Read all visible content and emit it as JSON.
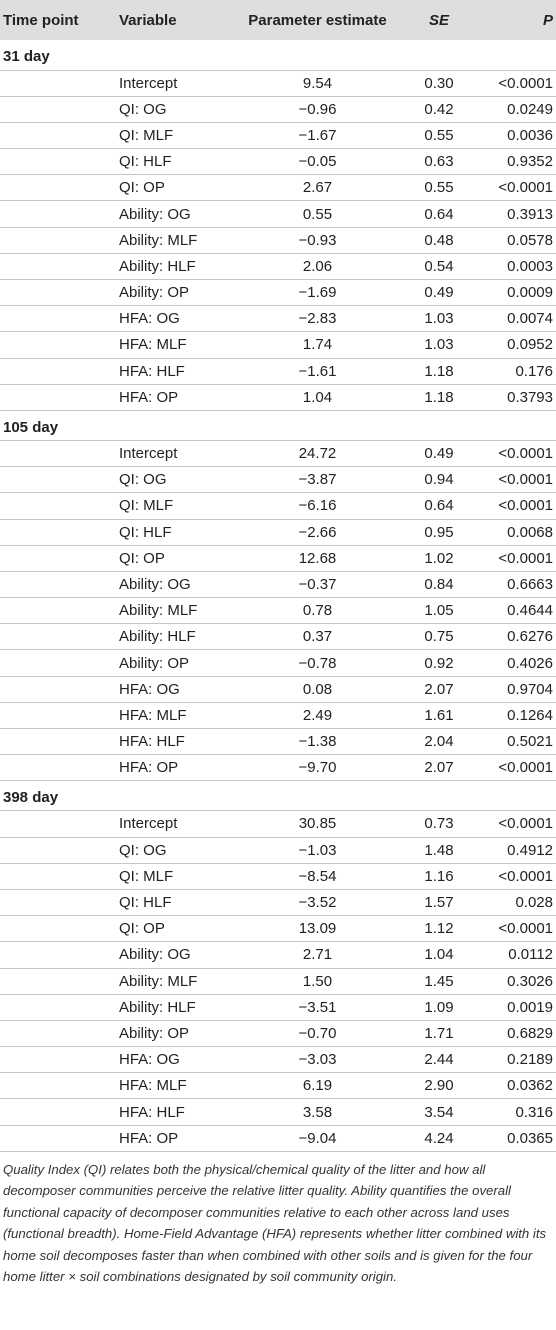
{
  "headers": {
    "time_point": "Time point",
    "variable": "Variable",
    "estimate": "Parameter estimate",
    "se": "SE",
    "p": "P"
  },
  "sections": [
    {
      "label": "31 day",
      "rows": [
        [
          "Intercept",
          "9.54",
          "0.30",
          "<0.0001"
        ],
        [
          "QI: OG",
          "−0.96",
          "0.42",
          "0.0249"
        ],
        [
          "QI: MLF",
          "−1.67",
          "0.55",
          "0.0036"
        ],
        [
          "QI: HLF",
          "−0.05",
          "0.63",
          "0.9352"
        ],
        [
          "QI: OP",
          "2.67",
          "0.55",
          "<0.0001"
        ],
        [
          "Ability: OG",
          "0.55",
          "0.64",
          "0.3913"
        ],
        [
          "Ability: MLF",
          "−0.93",
          "0.48",
          "0.0578"
        ],
        [
          "Ability: HLF",
          "2.06",
          "0.54",
          "0.0003"
        ],
        [
          "Ability: OP",
          "−1.69",
          "0.49",
          "0.0009"
        ],
        [
          "HFA: OG",
          "−2.83",
          "1.03",
          "0.0074"
        ],
        [
          "HFA: MLF",
          "1.74",
          "1.03",
          "0.0952"
        ],
        [
          "HFA: HLF",
          "−1.61",
          "1.18",
          "0.176"
        ],
        [
          "HFA: OP",
          "1.04",
          "1.18",
          "0.3793"
        ]
      ]
    },
    {
      "label": "105 day",
      "rows": [
        [
          "Intercept",
          "24.72",
          "0.49",
          "<0.0001"
        ],
        [
          "QI: OG",
          "−3.87",
          "0.94",
          "<0.0001"
        ],
        [
          "QI: MLF",
          "−6.16",
          "0.64",
          "<0.0001"
        ],
        [
          "QI: HLF",
          "−2.66",
          "0.95",
          "0.0068"
        ],
        [
          "QI: OP",
          "12.68",
          "1.02",
          "<0.0001"
        ],
        [
          "Ability: OG",
          "−0.37",
          "0.84",
          "0.6663"
        ],
        [
          "Ability: MLF",
          "0.78",
          "1.05",
          "0.4644"
        ],
        [
          "Ability: HLF",
          "0.37",
          "0.75",
          "0.6276"
        ],
        [
          "Ability: OP",
          "−0.78",
          "0.92",
          "0.4026"
        ],
        [
          "HFA: OG",
          "0.08",
          "2.07",
          "0.9704"
        ],
        [
          "HFA: MLF",
          "2.49",
          "1.61",
          "0.1264"
        ],
        [
          "HFA: HLF",
          "−1.38",
          "2.04",
          "0.5021"
        ],
        [
          "HFA: OP",
          "−9.70",
          "2.07",
          "<0.0001"
        ]
      ]
    },
    {
      "label": "398 day",
      "rows": [
        [
          "Intercept",
          "30.85",
          "0.73",
          "<0.0001"
        ],
        [
          "QI: OG",
          "−1.03",
          "1.48",
          "0.4912"
        ],
        [
          "QI: MLF",
          "−8.54",
          "1.16",
          "<0.0001"
        ],
        [
          "QI: HLF",
          "−3.52",
          "1.57",
          "0.028"
        ],
        [
          "QI: OP",
          "13.09",
          "1.12",
          "<0.0001"
        ],
        [
          "Ability: OG",
          "2.71",
          "1.04",
          "0.0112"
        ],
        [
          "Ability: MLF",
          "1.50",
          "1.45",
          "0.3026"
        ],
        [
          "Ability: HLF",
          "−3.51",
          "1.09",
          "0.0019"
        ],
        [
          "Ability: OP",
          "−0.70",
          "1.71",
          "0.6829"
        ],
        [
          "HFA: OG",
          "−3.03",
          "2.44",
          "0.2189"
        ],
        [
          "HFA: MLF",
          "6.19",
          "2.90",
          "0.0362"
        ],
        [
          "HFA: HLF",
          "3.58",
          "3.54",
          "0.316"
        ],
        [
          "HFA: OP",
          "−9.04",
          "4.24",
          "0.0365"
        ]
      ]
    }
  ],
  "footnote": "Quality Index (QI) relates both the physical/chemical quality of the litter and how all decomposer communities perceive the relative litter quality. Ability quantifies the overall functional capacity of decomposer communities relative to each other across land uses (functional breadth). Home-Field Advantage (HFA) represents whether litter combined with its home soil decomposes faster than when combined with other soils and is given for the four home litter × soil combinations designated by soil community origin.",
  "colors": {
    "header_bg": "#dedede",
    "row_rule": "#c6c6c6",
    "text": "#222222"
  }
}
